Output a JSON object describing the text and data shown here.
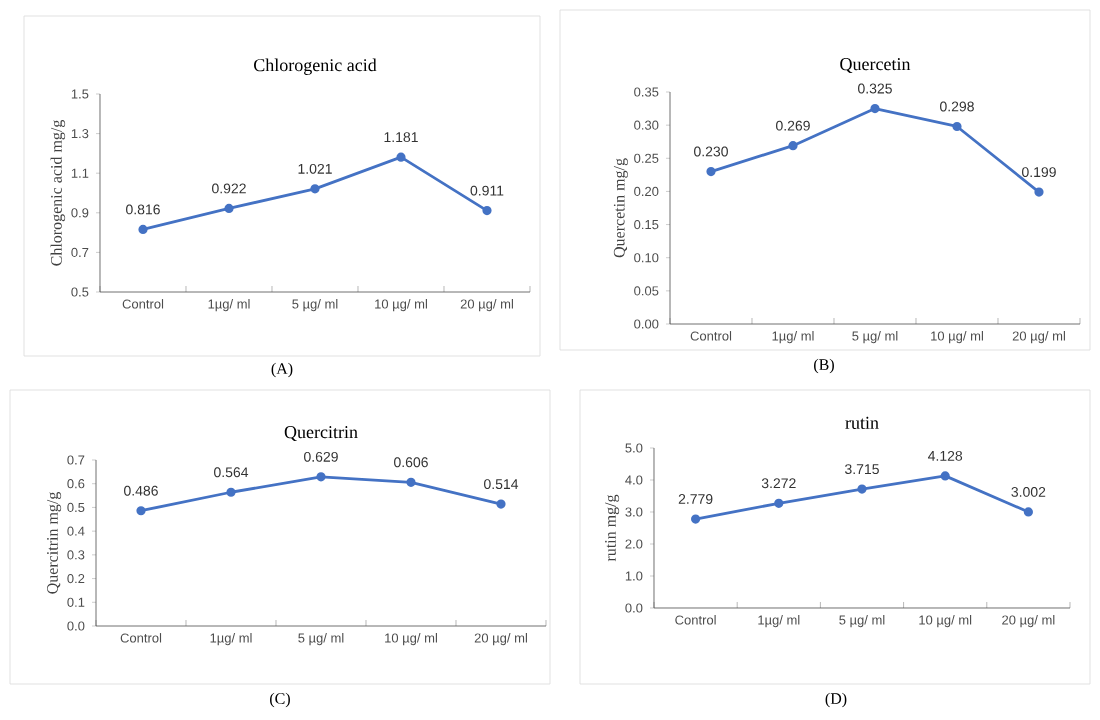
{
  "chart_data": [
    {
      "type": "line",
      "title": "Chlorogenic acid",
      "ylabel": "Chlorogenic acid mg/g",
      "categories": [
        "Control",
        "1µg/ ml",
        "5 µg/ ml",
        "10 µg/ ml",
        "20 µg/ ml"
      ],
      "series": [
        {
          "color": "#4472c4",
          "values": [
            0.816,
            0.922,
            1.021,
            1.181,
            0.911
          ],
          "value_labels": [
            "0.816",
            "0.922",
            "1.021",
            "1.181",
            "0.911"
          ]
        }
      ],
      "ylim": [
        0.5,
        1.5
      ],
      "yticks": [
        0.5,
        0.7,
        0.9,
        1.1,
        1.3,
        1.5
      ],
      "marker": "circle",
      "annotations": [
        "(A)"
      ]
    },
    {
      "type": "line",
      "title": "Quercetin",
      "ylabel": "Quercetin mg/g",
      "categories": [
        "Control",
        "1µg/ ml",
        "5 µg/ ml",
        "10 µg/ ml",
        "20 µg/ ml"
      ],
      "series": [
        {
          "color": "#4472c4",
          "values": [
            0.23,
            0.269,
            0.325,
            0.298,
            0.199
          ],
          "value_labels": [
            "0.230",
            "0.269",
            "0.325",
            "0.298",
            "0.199"
          ]
        }
      ],
      "ylim": [
        0,
        0.35
      ],
      "yticks": [
        {
          "value": 0,
          "label": "0.00"
        },
        {
          "value": 0.05,
          "label": "0.05"
        },
        {
          "value": 0.1,
          "label": "0.10"
        },
        {
          "value": 0.15,
          "label": "0.15"
        },
        {
          "value": 0.2,
          "label": "0.20"
        },
        {
          "value": 0.25,
          "label": "0.25"
        },
        {
          "value": 0.3,
          "label": "0.30"
        },
        {
          "value": 0.35,
          "label": "0.35"
        }
      ],
      "marker": "circle",
      "annotations": [
        "(B)"
      ]
    },
    {
      "type": "line",
      "title": "Quercitrin",
      "ylabel": "Quercitrin mg/g",
      "categories": [
        "Control",
        "1µg/ ml",
        "5 µg/ ml",
        "10 µg/ ml",
        "20 µg/ ml"
      ],
      "series": [
        {
          "color": "#4472c4",
          "values": [
            0.486,
            0.564,
            0.629,
            0.606,
            0.514
          ],
          "value_labels": [
            "0.486",
            "0.564",
            "0.629",
            "0.606",
            "0.514"
          ]
        }
      ],
      "ylim": [
        0,
        0.7
      ],
      "yticks": [
        {
          "value": 0,
          "label": "0.0"
        },
        0.1,
        0.2,
        0.3,
        0.4,
        0.5,
        0.6,
        0.7
      ],
      "marker": "circle",
      "annotations": [
        "(C)"
      ]
    },
    {
      "type": "line",
      "title": "rutin",
      "ylabel": "rutin mg/g",
      "categories": [
        "Control",
        "1µg/ ml",
        "5 µg/ ml",
        "10 µg/ ml",
        "20 µg/ ml"
      ],
      "series": [
        {
          "color": "#4472c4",
          "values": [
            2.779,
            3.272,
            3.715,
            4.128,
            3.002
          ],
          "value_labels": [
            "2.779",
            "3.272",
            "3.715",
            "4.128",
            "3.002"
          ]
        }
      ],
      "ylim": [
        0,
        5
      ],
      "yticks": [
        {
          "value": 0,
          "label": "0.0"
        },
        {
          "value": 1,
          "label": "1.0"
        },
        {
          "value": 2,
          "label": "2.0"
        },
        {
          "value": 3,
          "label": "3.0"
        },
        {
          "value": 4,
          "label": "4.0"
        },
        {
          "value": 5,
          "label": "5.0"
        }
      ],
      "marker": "circle",
      "annotations": [
        "(D)"
      ]
    }
  ]
}
